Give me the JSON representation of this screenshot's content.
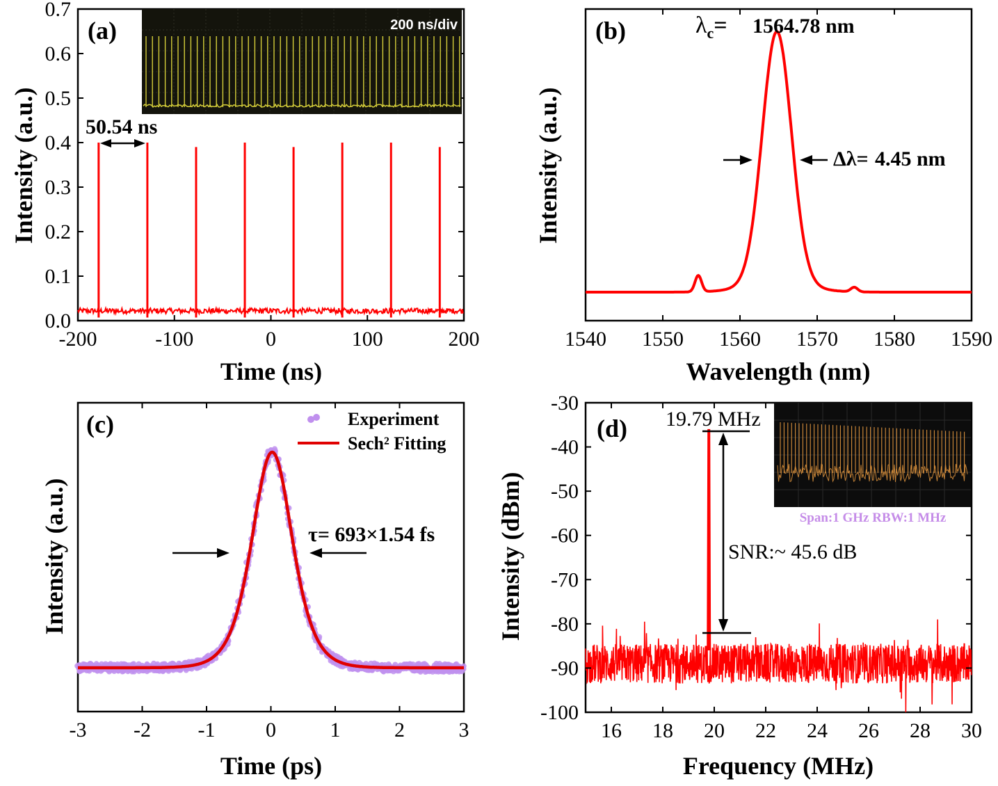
{
  "chart_data": [
    {
      "panel": "(a)",
      "type": "line",
      "xlabel": "Time (ns)",
      "ylabel": "Intensity (a.u.)",
      "xlim": [
        -200,
        200
      ],
      "ylim": [
        0.0,
        0.7
      ],
      "xticks": [
        "-200",
        "-100",
        "0",
        "100",
        "200"
      ],
      "yticks": [
        "0.0",
        "0.1",
        "0.2",
        "0.3",
        "0.4",
        "0.5",
        "0.6",
        "0.7"
      ],
      "pulse_times": [
        -178.5,
        -128.0,
        -77.5,
        -27.0,
        23.5,
        74.0,
        124.5,
        175.0
      ],
      "pulse_peaks": [
        0.4,
        0.4,
        0.39,
        0.4,
        0.39,
        0.4,
        0.4,
        0.39
      ],
      "baseline": 0.022,
      "color": "#ff0000",
      "annotation": "50.54 ns",
      "inset_label": "200 ns/div"
    },
    {
      "panel": "(b)",
      "type": "line",
      "xlabel": "Wavelength (nm)",
      "ylabel": "Intensity (a.u.)",
      "xlim": [
        1540,
        1590
      ],
      "xticks": [
        "1540",
        "1550",
        "1560",
        "1570",
        "1580",
        "1590"
      ],
      "center_wavelength": 1564.78,
      "fwhm": 4.45,
      "sidebands": [
        1554.6,
        1574.8
      ],
      "center_label": "1564.78 nm",
      "width_label": "4.45 nm",
      "color": "#ff0000"
    },
    {
      "panel": "(c)",
      "type": "scatter",
      "xlabel": "Time (ps)",
      "ylabel": "Intensity (a.u.)",
      "xlim": [
        -3,
        3
      ],
      "xticks": [
        "-3",
        "-2",
        "-1",
        "0",
        "1",
        "2",
        "3"
      ],
      "pulse_center": 0.02,
      "series": [
        {
          "name": "Experiment",
          "color": "#c090ee"
        },
        {
          "name": "Sech² Fitting",
          "color": "#ff0000"
        }
      ],
      "annotation": "τ= 693×1.54 fs"
    },
    {
      "panel": "(d)",
      "type": "line",
      "xlabel": "Frequency (MHz)",
      "ylabel": "Intensity (dBm)",
      "xlim": [
        15,
        30
      ],
      "ylim": [
        -100,
        -30
      ],
      "xticks": [
        "16",
        "18",
        "20",
        "22",
        "24",
        "26",
        "28",
        "30"
      ],
      "yticks": [
        "-30",
        "-40",
        "-50",
        "-60",
        "-70",
        "-80",
        "-90",
        "-100"
      ],
      "peak_frequency": 19.79,
      "peak_level": -36.2,
      "noise_floor": -82,
      "noise_mean": -89,
      "snr_db": 45.6,
      "peak_label": "19.79 MHz",
      "snr_label": "SNR:~ 45.6 dB",
      "inset_caption": "Span:1 GHz  RBW:1 MHz",
      "color": "#ff0000"
    }
  ],
  "colors": {
    "trace": "#ff0000",
    "experiment": "#c090ee",
    "scope_bg": "#14140c",
    "scope_trace": "#d6cf3a",
    "rf_trace": "#d9903c"
  }
}
